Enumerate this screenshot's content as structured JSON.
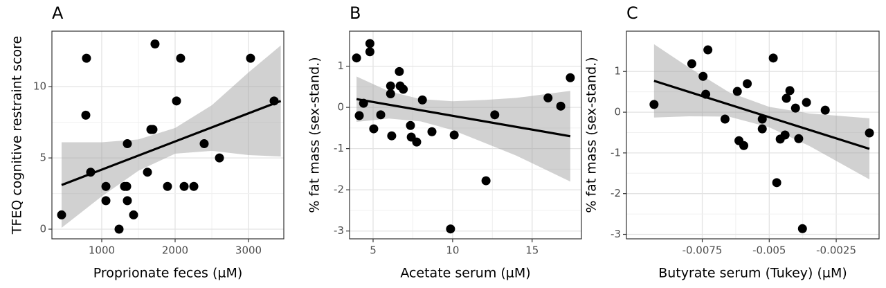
{
  "chart_data": [
    {
      "type": "scatter",
      "title": "A",
      "x_label": "Proprionate feces (µM)",
      "y_label": "TFEQ cognitive restraint score",
      "color": "#000000",
      "band_color": "#999999",
      "grid": true,
      "xlim": [
        321,
        3481
      ],
      "ylim": [
        -0.68,
        13.9
      ],
      "xticks": [
        1000,
        2000,
        3000
      ],
      "yticks": [
        0,
        5,
        10
      ],
      "x": [
        453,
        792,
        783,
        849,
        1057,
        1057,
        1236,
        1311,
        1340,
        1349,
        1349,
        1434,
        1623,
        1726,
        1670,
        1698,
        1896,
        2019,
        2075,
        2123,
        2255,
        2396,
        2604,
        3028,
        3349
      ],
      "values": [
        1,
        12,
        8,
        4,
        3,
        2,
        0,
        3,
        3,
        6,
        2,
        1,
        4,
        13,
        7,
        7,
        3,
        9,
        12,
        3,
        3,
        6,
        5,
        12,
        9
      ],
      "fit_x": [
        453,
        3440
      ],
      "fit_y": [
        3.1,
        9.0
      ],
      "band_x": [
        453,
        1000,
        1500,
        2000,
        2500,
        3000,
        3440
      ],
      "band_lower": [
        0.1,
        2.3,
        4.1,
        5.3,
        5.5,
        5.2,
        5.1
      ],
      "band_upper": [
        6.1,
        6.1,
        6.3,
        7.1,
        8.7,
        11.0,
        12.9
      ]
    },
    {
      "type": "scatter",
      "title": "B",
      "x_label": "Acetate serum (µM)",
      "y_label": "% fat mass (sex-stand.)",
      "color": "#000000",
      "band_color": "#999999",
      "grid": true,
      "xlim": [
        3.52,
        18.1
      ],
      "ylim": [
        -3.19,
        1.85
      ],
      "xticks": [
        5,
        10,
        15
      ],
      "yticks": [
        -3,
        -2,
        -1,
        0,
        1
      ],
      "x": [
        3.96,
        4.13,
        4.4,
        4.8,
        4.8,
        5.04,
        5.48,
        6.1,
        6.1,
        6.17,
        6.65,
        6.7,
        6.9,
        7.35,
        7.4,
        7.74,
        8.1,
        8.7,
        10.1,
        9.87,
        12.1,
        12.65,
        16.0,
        16.8,
        17.4
      ],
      "values": [
        1.2,
        -0.2,
        0.1,
        1.55,
        1.35,
        -0.52,
        -0.18,
        0.33,
        0.52,
        -0.69,
        0.87,
        0.52,
        0.44,
        -0.44,
        -0.72,
        -0.84,
        0.18,
        -0.59,
        -0.67,
        -2.95,
        -1.78,
        -0.18,
        0.23,
        0.03,
        0.72
      ],
      "fit_x": [
        3.96,
        17.4
      ],
      "fit_y": [
        0.2,
        -0.7
      ],
      "band_x": [
        3.96,
        6,
        8,
        10,
        12,
        14,
        17.4
      ],
      "band_lower": [
        -0.35,
        -0.27,
        -0.34,
        -0.55,
        -0.86,
        -1.17,
        -1.8
      ],
      "band_upper": [
        0.75,
        0.39,
        0.2,
        0.15,
        0.18,
        0.23,
        0.4
      ]
    },
    {
      "type": "scatter",
      "title": "C",
      "x_label": "Butyrate serum (Tukey) (µM)",
      "y_label": "% fat mass (sex-stand.)",
      "color": "#000000",
      "band_color": "#999999",
      "grid": true,
      "xlim": [
        -0.01033,
        -0.0009
      ],
      "ylim": [
        -3.11,
        1.99
      ],
      "xticks": [
        -0.0075,
        -0.005,
        -0.0025
      ],
      "yticks": [
        -3,
        -2,
        -1,
        0,
        1
      ],
      "x": [
        -0.0093,
        -0.00789,
        -0.00747,
        -0.00737,
        -0.00729,
        -0.00665,
        -0.00619,
        -0.00613,
        -0.00595,
        -0.00582,
        -0.00526,
        -0.00526,
        -0.00485,
        -0.00472,
        -0.00459,
        -0.00441,
        -0.00436,
        -0.00423,
        -0.00402,
        -0.0039,
        -0.00376,
        -0.00361,
        -0.00291,
        -0.00126
      ],
      "values": [
        0.19,
        1.19,
        0.88,
        0.44,
        1.53,
        -0.17,
        0.51,
        -0.7,
        -0.82,
        0.7,
        -0.17,
        -0.41,
        1.33,
        -1.73,
        -0.66,
        -0.56,
        0.34,
        0.53,
        0.1,
        -0.65,
        -2.86,
        0.24,
        0.05,
        -0.51
      ],
      "fit_x": [
        -0.0093,
        -0.00126
      ],
      "fit_y": [
        0.77,
        -0.9
      ],
      "band_x": [
        -0.0093,
        -0.008,
        -0.0065,
        -0.005,
        -0.0035,
        -0.00126
      ],
      "band_lower": [
        -0.13,
        -0.1,
        -0.11,
        -0.37,
        -0.83,
        -1.65
      ],
      "band_upper": [
        1.67,
        1.1,
        0.49,
        0.13,
        -0.03,
        -0.15
      ]
    }
  ]
}
